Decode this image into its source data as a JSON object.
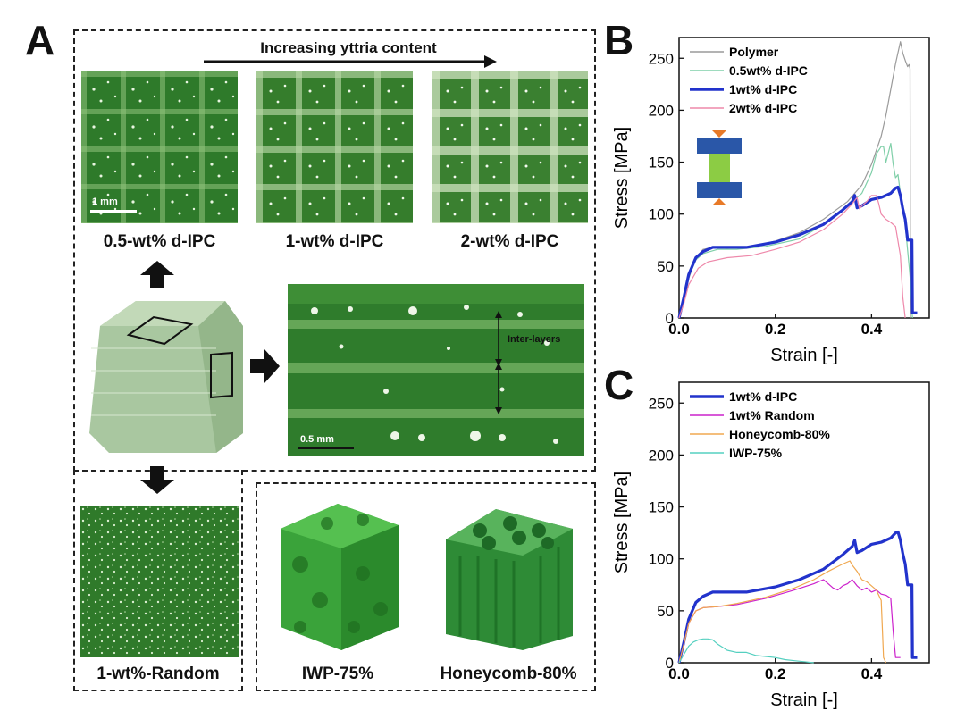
{
  "panels": {
    "a": "A",
    "b": "B",
    "c": "C"
  },
  "panel_a": {
    "increase_label": "Increasing yttria content",
    "images": {
      "top": [
        {
          "caption": "0.5-wt% d-IPC",
          "scale": "1 mm"
        },
        {
          "caption": "1-wt% d-IPC"
        },
        {
          "caption": "2-wt% d-IPC"
        }
      ],
      "closeup": {
        "annotation": "Inter-layers",
        "scale": "0.5 mm"
      },
      "random": {
        "caption": "1-wt%-Random"
      },
      "iwp": {
        "caption": "IWP-75%"
      },
      "honeycomb": {
        "caption": "Honeycomb-80%"
      }
    }
  },
  "colors": {
    "polymer": "#9a9a9a",
    "d05": "#7fcfa8",
    "d1": "#2233cc",
    "d2": "#ee88aa",
    "random": "#cc22cc",
    "honeycomb": "#f0a850",
    "iwp": "#55d0c0",
    "platen": "#2a57a8",
    "specimen": "#8ccc44",
    "force": "#e87a28"
  },
  "chart_data": [
    {
      "id": "B",
      "type": "line",
      "xlabel": "Strain [-]",
      "ylabel": "Stress [MPa]",
      "xlim": [
        0,
        0.52
      ],
      "ylim": [
        0,
        270
      ],
      "xticks": [
        "0.0",
        "0.2",
        "0.4"
      ],
      "yticks": [
        "0",
        "50",
        "100",
        "150",
        "200",
        "250"
      ],
      "legend_position": "top-left",
      "series": [
        {
          "name": "Polymer",
          "color_key": "polymer",
          "points": [
            [
              0,
              0
            ],
            [
              0.01,
              15
            ],
            [
              0.02,
              38
            ],
            [
              0.035,
              58
            ],
            [
              0.05,
              66
            ],
            [
              0.07,
              68
            ],
            [
              0.1,
              67
            ],
            [
              0.15,
              69
            ],
            [
              0.2,
              74
            ],
            [
              0.25,
              82
            ],
            [
              0.3,
              95
            ],
            [
              0.35,
              112
            ],
            [
              0.38,
              128
            ],
            [
              0.4,
              148
            ],
            [
              0.42,
              175
            ],
            [
              0.43,
              195
            ],
            [
              0.44,
              220
            ],
            [
              0.45,
              245
            ],
            [
              0.46,
              266
            ],
            [
              0.465,
              255
            ],
            [
              0.47,
              248
            ],
            [
              0.475,
              242
            ],
            [
              0.478,
              244
            ],
            [
              0.48,
              240
            ],
            [
              0.481,
              0
            ]
          ]
        },
        {
          "name": "0.5wt% d-IPC",
          "color_key": "d05",
          "points": [
            [
              0,
              0
            ],
            [
              0.01,
              18
            ],
            [
              0.02,
              40
            ],
            [
              0.035,
              56
            ],
            [
              0.05,
              62
            ],
            [
              0.08,
              66
            ],
            [
              0.12,
              66
            ],
            [
              0.18,
              69
            ],
            [
              0.25,
              76
            ],
            [
              0.3,
              90
            ],
            [
              0.35,
              108
            ],
            [
              0.38,
              120
            ],
            [
              0.4,
              140
            ],
            [
              0.41,
              158
            ],
            [
              0.42,
              165
            ],
            [
              0.425,
              165
            ],
            [
              0.43,
              150
            ],
            [
              0.44,
              168
            ],
            [
              0.445,
              148
            ],
            [
              0.45,
              135
            ],
            [
              0.455,
              138
            ],
            [
              0.46,
              120
            ],
            [
              0.47,
              90
            ],
            [
              0.48,
              40
            ],
            [
              0.485,
              0
            ]
          ]
        },
        {
          "name": "1wt% d-IPC",
          "color_key": "d1",
          "points": [
            [
              0,
              0
            ],
            [
              0.01,
              20
            ],
            [
              0.02,
              42
            ],
            [
              0.035,
              58
            ],
            [
              0.05,
              64
            ],
            [
              0.07,
              68
            ],
            [
              0.1,
              68
            ],
            [
              0.14,
              68
            ],
            [
              0.2,
              73
            ],
            [
              0.25,
              80
            ],
            [
              0.3,
              90
            ],
            [
              0.34,
              104
            ],
            [
              0.36,
              112
            ],
            [
              0.365,
              118
            ],
            [
              0.37,
              106
            ],
            [
              0.38,
              108
            ],
            [
              0.4,
              114
            ],
            [
              0.42,
              116
            ],
            [
              0.44,
              120
            ],
            [
              0.45,
              125
            ],
            [
              0.455,
              126
            ],
            [
              0.46,
              118
            ],
            [
              0.465,
              105
            ],
            [
              0.47,
              95
            ],
            [
              0.475,
              75
            ],
            [
              0.48,
              75
            ],
            [
              0.484,
              75
            ],
            [
              0.485,
              5
            ],
            [
              0.495,
              5
            ]
          ]
        },
        {
          "name": "2wt% d-IPC",
          "color_key": "d2",
          "points": [
            [
              0,
              0
            ],
            [
              0.01,
              14
            ],
            [
              0.02,
              32
            ],
            [
              0.04,
              48
            ],
            [
              0.06,
              54
            ],
            [
              0.1,
              58
            ],
            [
              0.15,
              60
            ],
            [
              0.2,
              66
            ],
            [
              0.25,
              73
            ],
            [
              0.3,
              85
            ],
            [
              0.34,
              100
            ],
            [
              0.36,
              110
            ],
            [
              0.37,
              116
            ],
            [
              0.375,
              105
            ],
            [
              0.38,
              108
            ],
            [
              0.39,
              112
            ],
            [
              0.4,
              118
            ],
            [
              0.41,
              118
            ],
            [
              0.415,
              110
            ],
            [
              0.42,
              100
            ],
            [
              0.43,
              95
            ],
            [
              0.44,
              92
            ],
            [
              0.45,
              88
            ],
            [
              0.46,
              60
            ],
            [
              0.465,
              20
            ],
            [
              0.47,
              0
            ]
          ]
        }
      ]
    },
    {
      "id": "C",
      "type": "line",
      "xlabel": "Strain [-]",
      "ylabel": "Stress [MPa]",
      "xlim": [
        0,
        0.52
      ],
      "ylim": [
        0,
        270
      ],
      "xticks": [
        "0.0",
        "0.2",
        "0.4"
      ],
      "yticks": [
        "0",
        "50",
        "100",
        "150",
        "200",
        "250"
      ],
      "legend_position": "top-left",
      "series": [
        {
          "name": "1wt% d-IPC",
          "color_key": "d1",
          "points": [
            [
              0,
              0
            ],
            [
              0.01,
              20
            ],
            [
              0.02,
              42
            ],
            [
              0.035,
              58
            ],
            [
              0.05,
              64
            ],
            [
              0.07,
              68
            ],
            [
              0.1,
              68
            ],
            [
              0.14,
              68
            ],
            [
              0.2,
              73
            ],
            [
              0.25,
              80
            ],
            [
              0.3,
              90
            ],
            [
              0.34,
              104
            ],
            [
              0.36,
              112
            ],
            [
              0.365,
              118
            ],
            [
              0.37,
              106
            ],
            [
              0.38,
              108
            ],
            [
              0.4,
              114
            ],
            [
              0.42,
              116
            ],
            [
              0.44,
              120
            ],
            [
              0.45,
              125
            ],
            [
              0.455,
              126
            ],
            [
              0.46,
              118
            ],
            [
              0.465,
              105
            ],
            [
              0.47,
              95
            ],
            [
              0.475,
              75
            ],
            [
              0.48,
              75
            ],
            [
              0.484,
              75
            ],
            [
              0.485,
              5
            ],
            [
              0.495,
              5
            ]
          ]
        },
        {
          "name": "1wt% Random",
          "color_key": "random",
          "points": [
            [
              0,
              0
            ],
            [
              0.01,
              18
            ],
            [
              0.02,
              38
            ],
            [
              0.035,
              50
            ],
            [
              0.05,
              53
            ],
            [
              0.08,
              54
            ],
            [
              0.12,
              56
            ],
            [
              0.18,
              62
            ],
            [
              0.24,
              70
            ],
            [
              0.28,
              76
            ],
            [
              0.3,
              80
            ],
            [
              0.31,
              76
            ],
            [
              0.32,
              72
            ],
            [
              0.33,
              70
            ],
            [
              0.34,
              74
            ],
            [
              0.35,
              76
            ],
            [
              0.36,
              80
            ],
            [
              0.37,
              74
            ],
            [
              0.38,
              70
            ],
            [
              0.39,
              72
            ],
            [
              0.4,
              68
            ],
            [
              0.41,
              70
            ],
            [
              0.42,
              66
            ],
            [
              0.43,
              65
            ],
            [
              0.44,
              62
            ],
            [
              0.445,
              30
            ],
            [
              0.45,
              5
            ],
            [
              0.46,
              5
            ]
          ]
        },
        {
          "name": "Honeycomb-80%",
          "color_key": "honeycomb",
          "points": [
            [
              0,
              0
            ],
            [
              0.01,
              18
            ],
            [
              0.02,
              38
            ],
            [
              0.035,
              50
            ],
            [
              0.05,
              53
            ],
            [
              0.08,
              54
            ],
            [
              0.12,
              57
            ],
            [
              0.18,
              63
            ],
            [
              0.24,
              72
            ],
            [
              0.28,
              80
            ],
            [
              0.31,
              88
            ],
            [
              0.34,
              95
            ],
            [
              0.355,
              98
            ],
            [
              0.36,
              94
            ],
            [
              0.37,
              88
            ],
            [
              0.38,
              80
            ],
            [
              0.39,
              78
            ],
            [
              0.4,
              74
            ],
            [
              0.41,
              70
            ],
            [
              0.42,
              60
            ],
            [
              0.425,
              5
            ],
            [
              0.43,
              0
            ]
          ]
        },
        {
          "name": "IWP-75%",
          "color_key": "iwp",
          "points": [
            [
              0,
              0
            ],
            [
              0.01,
              8
            ],
            [
              0.02,
              16
            ],
            [
              0.03,
              20
            ],
            [
              0.04,
              22
            ],
            [
              0.05,
              23
            ],
            [
              0.06,
              23
            ],
            [
              0.07,
              22
            ],
            [
              0.08,
              18
            ],
            [
              0.1,
              12
            ],
            [
              0.12,
              10
            ],
            [
              0.14,
              10
            ],
            [
              0.16,
              7
            ],
            [
              0.18,
              6
            ],
            [
              0.2,
              5
            ],
            [
              0.22,
              3
            ],
            [
              0.24,
              2
            ],
            [
              0.26,
              1
            ],
            [
              0.28,
              0
            ]
          ]
        }
      ]
    }
  ]
}
